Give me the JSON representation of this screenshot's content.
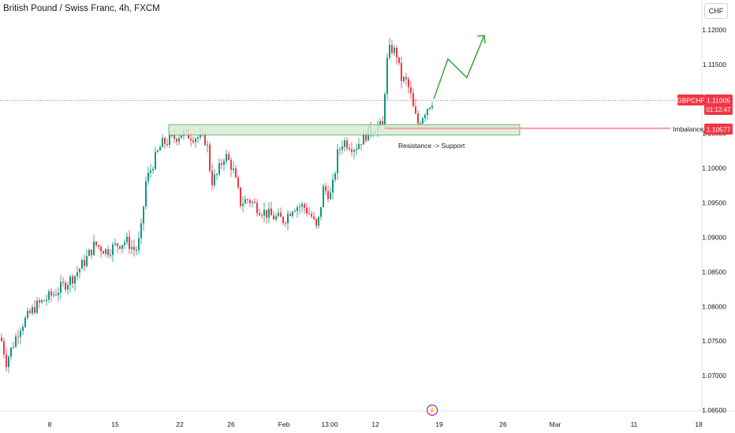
{
  "header": {
    "title": "British Pound / Swiss Franc, 4h, FXCM",
    "currency_button": "CHF"
  },
  "price_label": {
    "symbol": "GBPCHF",
    "price": "1.11005",
    "countdown": "01:12:47"
  },
  "annotations": {
    "zone_text": "Resistance -> Support",
    "line_label": "Imbalance",
    "line_value": "1.10577"
  },
  "colors": {
    "up": "#089981",
    "down": "#f23645",
    "zone_fill": "#d6ebd3",
    "zone_stroke": "#4caf50",
    "projection": "#2e9e2e",
    "imbalance": "#f7a1a6"
  },
  "chart_data": {
    "type": "candlestick",
    "title": "British Pound / Swiss Franc, 4h, FXCM",
    "y_axis": {
      "ticks": [
        "1.12000",
        "1.11500",
        "1.11000",
        "1.10500",
        "1.10000",
        "1.09500",
        "1.09000",
        "1.08500",
        "1.08000",
        "1.07500",
        "1.07000",
        "1.06500"
      ],
      "ylim": [
        1.0645,
        1.1245
      ]
    },
    "x_axis": {
      "ticks": [
        "8",
        "15",
        "22",
        "26",
        "Feb",
        "13:00",
        "12",
        "19",
        "26",
        "Mar",
        "11",
        "18"
      ]
    },
    "price_path": [
      [
        0,
        1.076
      ],
      [
        8,
        1.072
      ],
      [
        25,
        1.077
      ],
      [
        45,
        1.08
      ],
      [
        70,
        1.082
      ],
      [
        95,
        1.0845
      ],
      [
        110,
        1.087
      ],
      [
        120,
        1.089
      ],
      [
        135,
        1.088
      ],
      [
        150,
        1.089
      ],
      [
        160,
        1.0895
      ],
      [
        172,
        1.088
      ],
      [
        178,
        1.09
      ],
      [
        185,
        1.098
      ],
      [
        195,
        1.101
      ],
      [
        205,
        1.1035
      ],
      [
        215,
        1.104
      ],
      [
        230,
        1.105
      ],
      [
        250,
        1.1045
      ],
      [
        262,
        1.104
      ],
      [
        268,
        1.098
      ],
      [
        275,
        1.099
      ],
      [
        285,
        1.102
      ],
      [
        295,
        1.1
      ],
      [
        305,
        1.095
      ],
      [
        315,
        1.0955
      ],
      [
        330,
        1.094
      ],
      [
        345,
        1.093
      ],
      [
        360,
        1.0925
      ],
      [
        372,
        1.0945
      ],
      [
        385,
        1.0945
      ],
      [
        395,
        1.093
      ],
      [
        402,
        1.091
      ],
      [
        410,
        1.097
      ],
      [
        420,
        1.096
      ],
      [
        428,
        1.102
      ],
      [
        435,
        1.104
      ],
      [
        450,
        1.103
      ],
      [
        465,
        1.105
      ],
      [
        475,
        1.106
      ],
      [
        485,
        1.106
      ],
      [
        490,
        1.115
      ],
      [
        495,
        1.1175
      ],
      [
        503,
        1.1165
      ],
      [
        508,
        1.113
      ],
      [
        515,
        1.1125
      ],
      [
        520,
        1.111
      ],
      [
        525,
        1.108
      ],
      [
        530,
        1.1065
      ],
      [
        535,
        1.1075
      ],
      [
        540,
        1.1085
      ],
      [
        546,
        1.1095
      ],
      [
        550,
        1.11
      ]
    ],
    "support_zone": {
      "x_start": "22",
      "x_end": "26",
      "y_low": 1.1048,
      "y_high": 1.1063
    },
    "imbalance_level": 1.10577,
    "current_price": 1.11005,
    "projection": [
      [
        550,
        1.11
      ],
      [
        568,
        1.1158
      ],
      [
        592,
        1.1131
      ],
      [
        614,
        1.1192
      ]
    ],
    "grid": false,
    "legend": "none"
  }
}
